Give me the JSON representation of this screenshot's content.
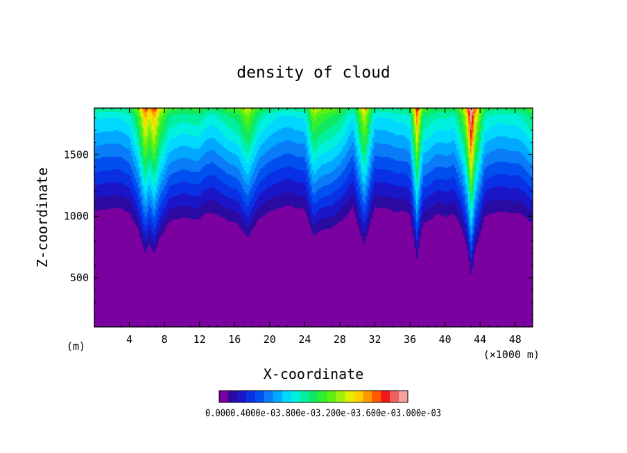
{
  "chart_data": {
    "type": "heatmap",
    "subtype": "filled-contour",
    "title": "density of cloud",
    "xlabel": "X-coordinate",
    "ylabel": "Z-coordinate",
    "x_unit_label": "(×1000 m)",
    "y_unit_label": "(m)",
    "xlim": [
      0,
      50
    ],
    "ylim": [
      100,
      1880
    ],
    "x_ticks": [
      4,
      8,
      12,
      16,
      20,
      24,
      28,
      32,
      36,
      40,
      44,
      48
    ],
    "y_ticks": [
      500,
      1000,
      1500
    ],
    "grid": false,
    "contour_levels": [
      0.0,
      0.0002,
      0.0004,
      0.0006,
      0.0008,
      0.001,
      0.0012,
      0.0014,
      0.0016,
      0.0018,
      0.002,
      0.0022,
      0.0024,
      0.0026,
      0.0028,
      0.003,
      0.0032,
      0.0034,
      0.0036,
      0.0038,
      0.004
    ],
    "colorbar": {
      "labels": [
        "0.000",
        "0.400e-03",
        "0.800e-03",
        "1.20e-03",
        "1.60e-03",
        "2.00e-03",
        "2.40e-03",
        "2.80e-03",
        "3.20e-03",
        "3.60e-03",
        "4.00e-03"
      ],
      "label_text": "0.0000.4000e-03.800e-03.200e-03.600e-03.000e-03",
      "colors": [
        "#7a00a0",
        "#2a0aa0",
        "#1a16c8",
        "#0a30e6",
        "#0050f0",
        "#0a7cf8",
        "#00a8ff",
        "#00d8ff",
        "#00f0e0",
        "#00f0a0",
        "#10e860",
        "#30f030",
        "#60f010",
        "#a0f010",
        "#e0f000",
        "#ffd000",
        "#ff9a00",
        "#ff5a00",
        "#f01818",
        "#f06060",
        "#f8a0a0"
      ]
    },
    "cloud_base_profile": {
      "x": [
        0,
        2,
        4,
        5,
        5.8,
        6.3,
        6.8,
        7.5,
        8.5,
        10,
        12,
        13.5,
        15,
        16.5,
        17.5,
        19,
        21,
        24,
        25,
        26.5,
        28,
        29.5,
        30.8,
        32,
        34,
        36,
        36.8,
        37.5,
        39,
        41,
        42,
        42.6,
        43,
        43.4,
        44.5,
        46,
        48,
        50
      ],
      "z": [
        960,
        960,
        940,
        800,
        620,
        700,
        620,
        760,
        860,
        900,
        880,
        940,
        880,
        840,
        760,
        900,
        970,
        960,
        760,
        820,
        860,
        960,
        700,
        960,
        960,
        920,
        600,
        860,
        900,
        920,
        800,
        640,
        450,
        650,
        900,
        940,
        930,
        860
      ]
    }
  }
}
